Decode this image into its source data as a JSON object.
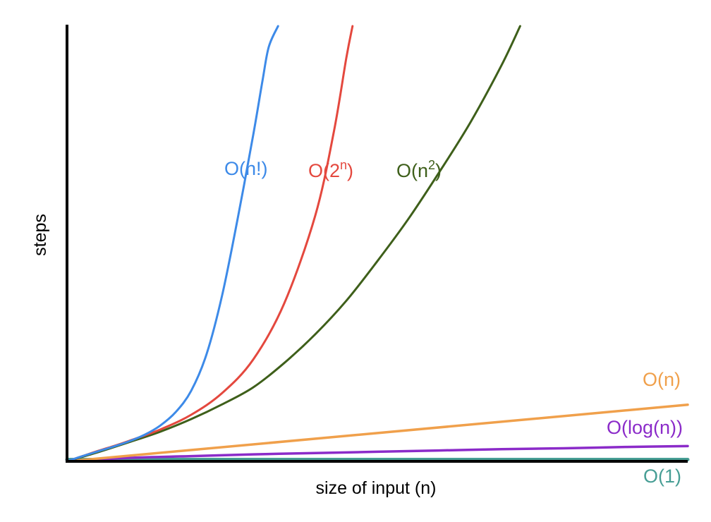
{
  "chart_data": {
    "type": "line",
    "title": "",
    "xlabel": "size of input (n)",
    "ylabel": "steps",
    "x_ticks": [],
    "y_ticks": [],
    "grid": false,
    "legend": "none",
    "xlim": [
      0,
      10
    ],
    "ylim": [
      0,
      100
    ],
    "series": [
      {
        "name": "O(n!)",
        "label_base": "O(n!)",
        "label_superscript": "",
        "label_suffix": "",
        "color": "#3d8ae8",
        "x": [
          0,
          0.25,
          0.5,
          0.75,
          1.0,
          1.25,
          1.5,
          1.75,
          2.0,
          2.25,
          2.5,
          2.75,
          3.0,
          3.15,
          3.25,
          3.4
        ],
        "y": [
          0,
          1.2,
          2.3,
          3.4,
          4.6,
          6.1,
          8.2,
          11.3,
          16.2,
          24.7,
          38.2,
          55.8,
          75.0,
          87.5,
          95.2,
          100
        ]
      },
      {
        "name": "O(2^n)",
        "label_base": "O(2",
        "label_superscript": "n",
        "label_suffix": ")",
        "color": "#e4483e",
        "x": [
          0,
          0.25,
          0.5,
          0.75,
          1.0,
          1.5,
          2.0,
          2.5,
          3.0,
          3.5,
          4.0,
          4.3,
          4.5,
          4.6
        ],
        "y": [
          0,
          1.2,
          2.4,
          3.5,
          4.7,
          7.3,
          10.7,
          15.7,
          23.4,
          36.3,
          56.5,
          75.8,
          92.7,
          100
        ]
      },
      {
        "name": "O(n^2)",
        "label_base": "O(n",
        "label_superscript": "2",
        "label_suffix": ")",
        "color": "#3e5f1a",
        "x": [
          0,
          0.5,
          1.0,
          1.5,
          2.0,
          2.5,
          3.0,
          3.5,
          4.0,
          4.5,
          5.0,
          5.5,
          6.0,
          6.5,
          7.0,
          7.3
        ],
        "y": [
          0,
          2.1,
          4.4,
          6.8,
          9.7,
          13.1,
          17.0,
          22.6,
          29.2,
          36.9,
          46.0,
          55.7,
          66.5,
          77.9,
          91.0,
          100
        ]
      },
      {
        "name": "O(n)",
        "label_base": "O(n)",
        "label_superscript": "",
        "label_suffix": "",
        "color": "#f0a04b",
        "x": [
          0,
          10
        ],
        "y": [
          0,
          13
        ]
      },
      {
        "name": "O(log(n))",
        "label_base": "O(log(n))",
        "label_superscript": "",
        "label_suffix": "",
        "color": "#8b2bc9",
        "x": [
          0,
          1,
          2,
          3,
          4,
          5,
          6,
          7,
          8,
          9,
          10
        ],
        "y": [
          0,
          0.8,
          1.2,
          1.6,
          1.9,
          2.2,
          2.5,
          2.8,
          3.0,
          3.3,
          3.5
        ]
      },
      {
        "name": "O(1)",
        "label_base": "O(1)",
        "label_superscript": "",
        "label_suffix": "",
        "color": "#479e95",
        "x": [
          0,
          10
        ],
        "y": [
          0.4,
          0.4
        ]
      }
    ],
    "axis_color": "#000000"
  }
}
